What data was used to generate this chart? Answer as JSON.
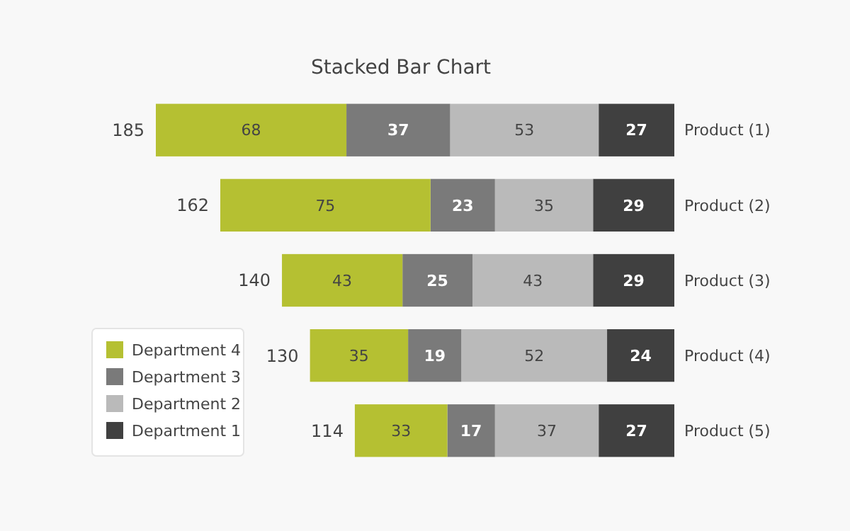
{
  "chart_data": {
    "type": "bar",
    "title": "Stacked Bar Chart",
    "orientation": "horizontal",
    "stacked": true,
    "categories": [
      "Product (1)",
      "Product (2)",
      "Product (3)",
      "Product (4)",
      "Product (5)"
    ],
    "xlim": [
      185,
      0
    ],
    "series": [
      {
        "name": "Department 1",
        "color": "#404040",
        "values": [
          27,
          29,
          29,
          24,
          27
        ]
      },
      {
        "name": "Department 2",
        "color": "#bababa",
        "values": [
          53,
          35,
          43,
          52,
          37
        ]
      },
      {
        "name": "Department 3",
        "color": "#7a7a7a",
        "values": [
          37,
          23,
          25,
          19,
          17
        ]
      },
      {
        "name": "Department 4",
        "color": "#b5c032",
        "values": [
          68,
          75,
          43,
          35,
          33
        ]
      }
    ],
    "data_labels": true,
    "totals": [
      "185",
      "162",
      "140",
      "130",
      "114"
    ],
    "legend": "bottom left"
  }
}
